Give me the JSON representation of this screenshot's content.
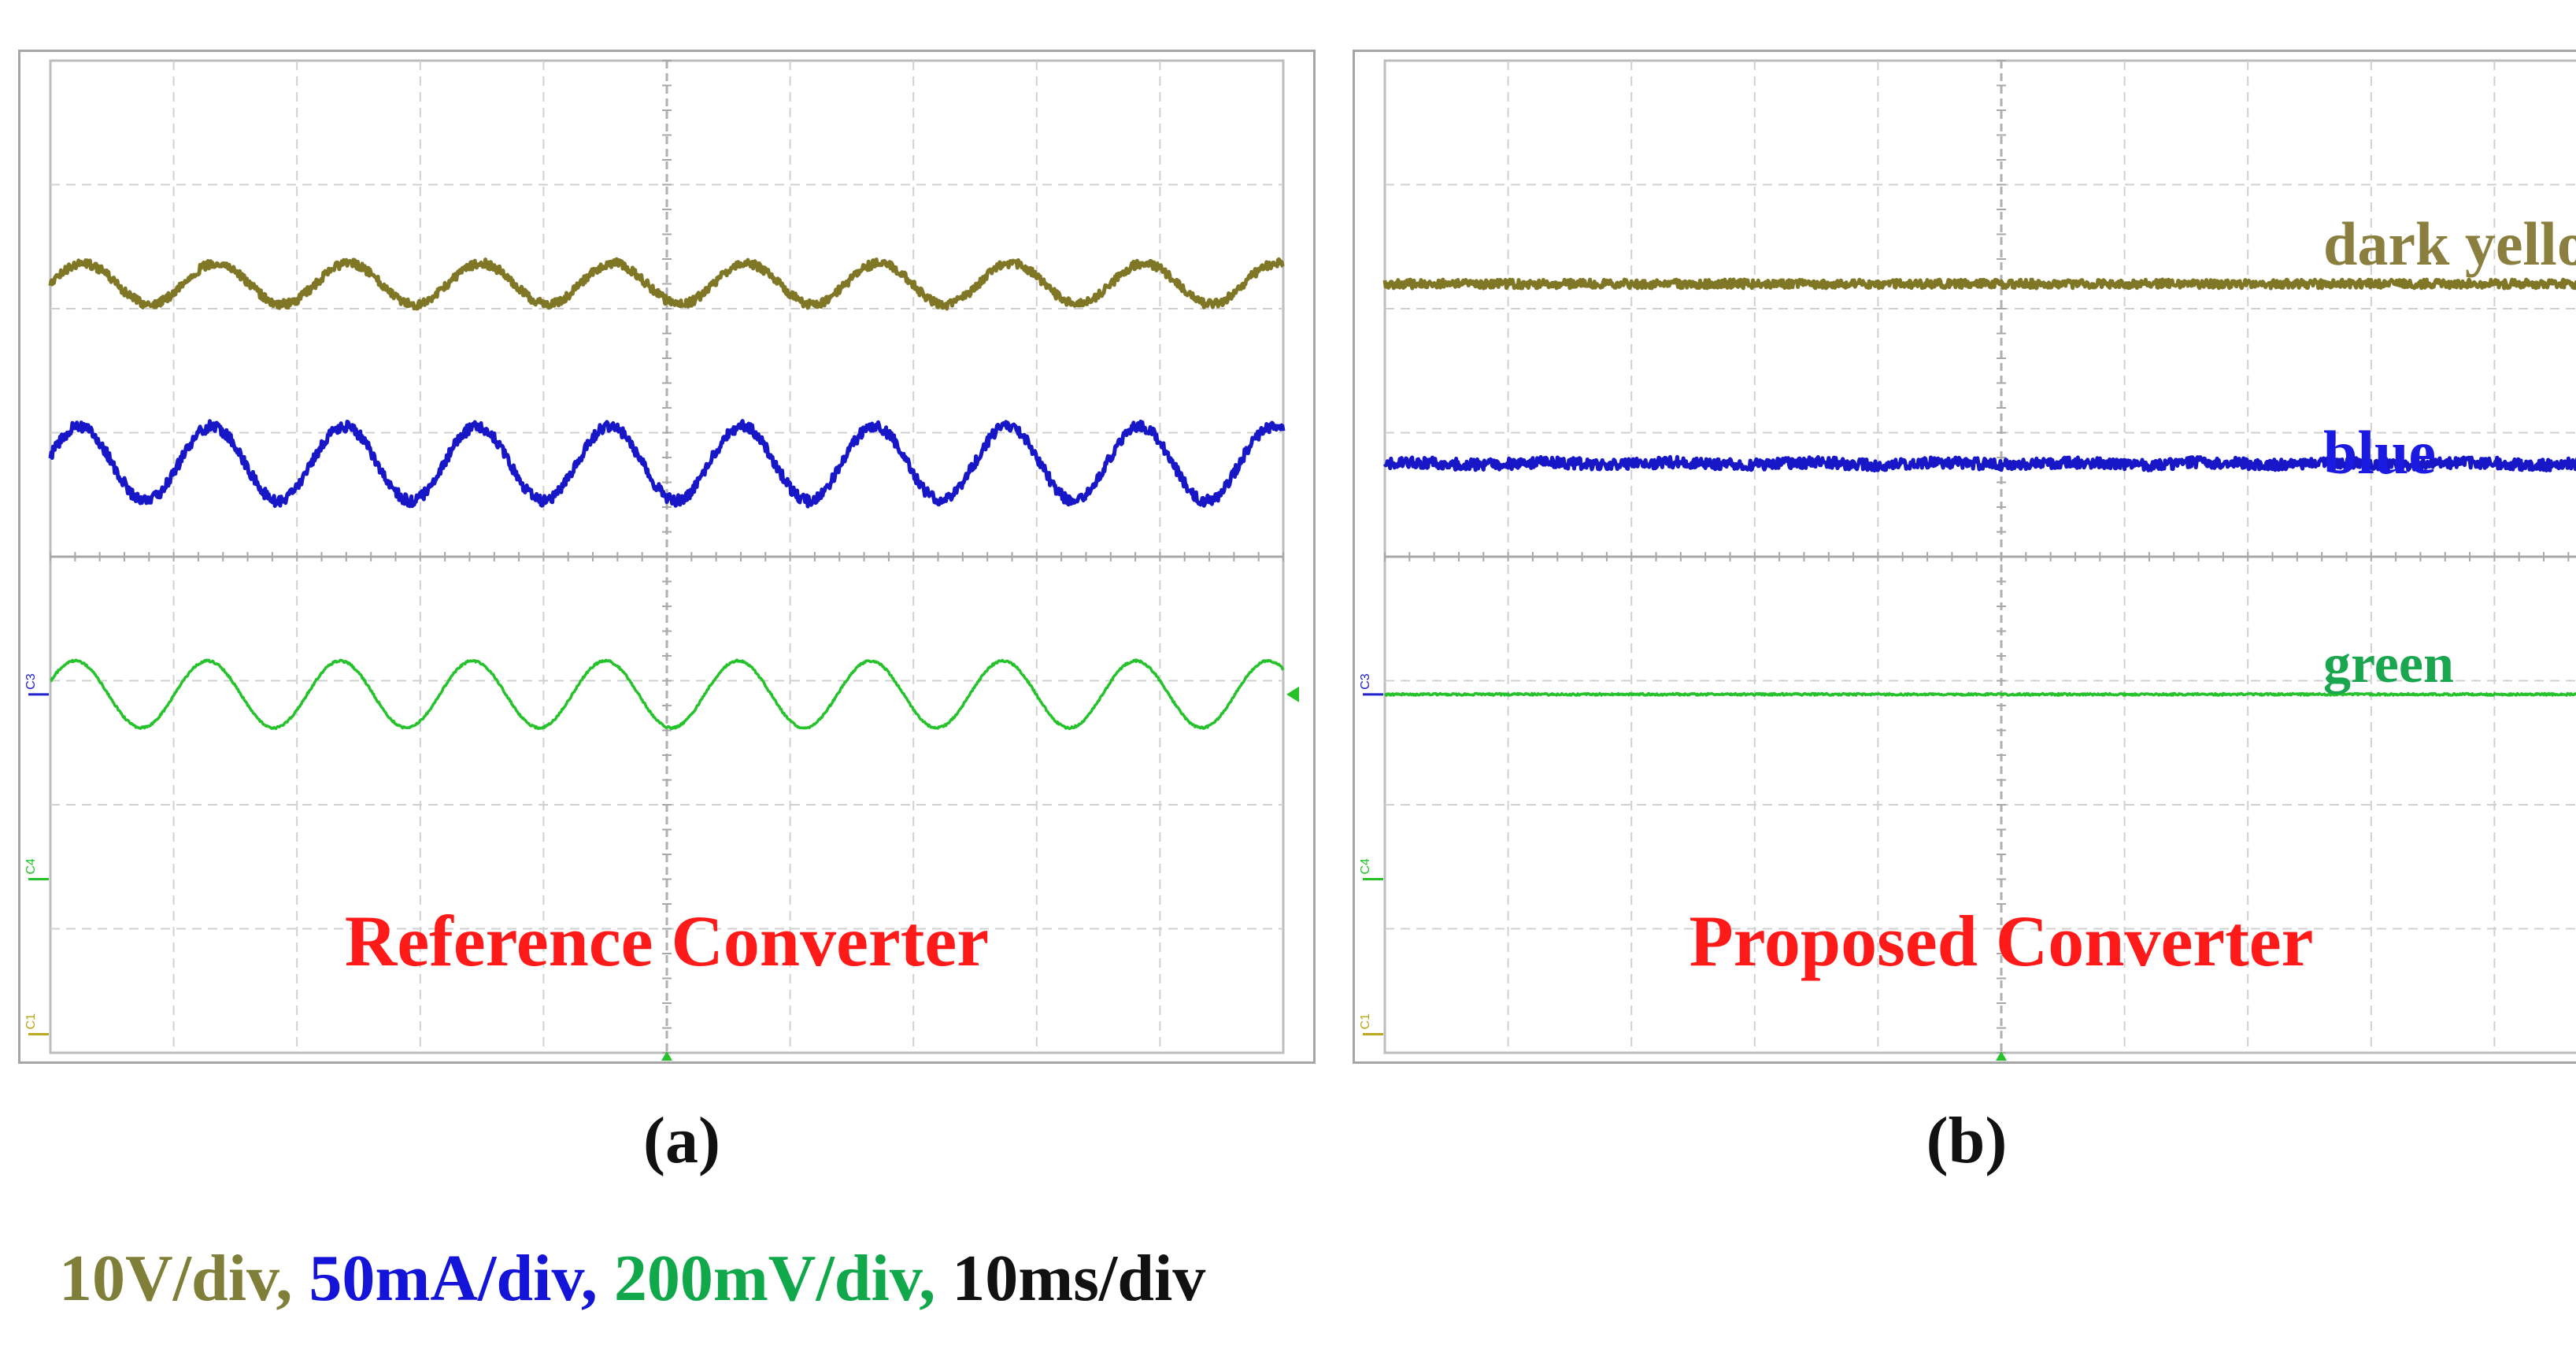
{
  "chart_data": [
    {
      "panel": "(a)",
      "type": "line",
      "title": "Reference Converter",
      "title_color": "#ff1a1a",
      "x_divisions": 10,
      "y_divisions": 8,
      "cycles_on_screen": 9.3,
      "series": [
        {
          "name": "dark yellow",
          "color": "#807726",
          "level_div": 6.2,
          "ripple_pp_div": 0.33,
          "noise_div": 0.035
        },
        {
          "name": "blue",
          "color": "#1717c8",
          "level_div": 4.75,
          "ripple_pp_div": 0.6,
          "noise_div": 0.045
        },
        {
          "name": "green",
          "color": "#25c22b",
          "level_div": 2.89,
          "ripple_pp_div": 0.54,
          "noise_div": 0.008
        }
      ],
      "channel_markers": [
        "C3",
        "C4",
        "C1"
      ],
      "series_labels": []
    },
    {
      "panel": "(b)",
      "type": "line",
      "title": "Proposed Converter",
      "title_color": "#ff1a1a",
      "x_divisions": 10,
      "y_divisions": 8,
      "cycles_on_screen": 9.3,
      "series": [
        {
          "name": "dark yellow",
          "color": "#807726",
          "level_div": 6.2,
          "ripple_pp_div": 0.0,
          "noise_div": 0.035
        },
        {
          "name": "blue",
          "color": "#1717c8",
          "level_div": 4.75,
          "ripple_pp_div": 0.02,
          "noise_div": 0.045
        },
        {
          "name": "green",
          "color": "#25c22b",
          "level_div": 2.89,
          "ripple_pp_div": 0.0,
          "noise_div": 0.008
        }
      ],
      "channel_markers": [
        "C3",
        "C4",
        "C1"
      ],
      "series_labels": [
        {
          "text": "dark yellow",
          "color": "#8b7f3f"
        },
        {
          "text": "blue",
          "color": "#1a1ae0"
        },
        {
          "text": "green",
          "color": "#1aa64f"
        }
      ]
    }
  ],
  "captions": {
    "a": "(a)",
    "b": "(b)"
  },
  "scales": {
    "voltage": "10V/div,",
    "current": "50mA/div,",
    "ripple": "200mV/div,",
    "time": "10ms/div"
  }
}
